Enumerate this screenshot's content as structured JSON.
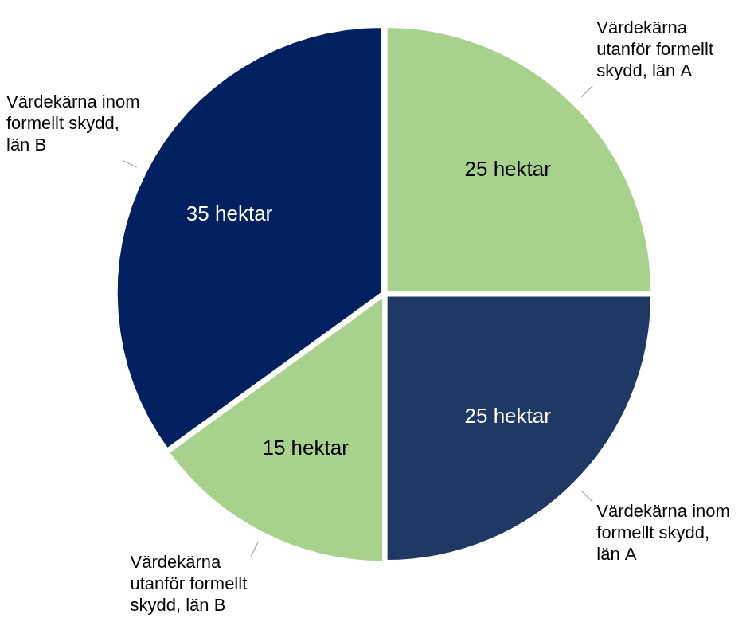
{
  "chart_data": {
    "type": "pie",
    "categories": [
      "Värdekärna utanför formellt skydd, län A",
      "Värdekärna inom formellt skydd, län A",
      "Värdekärna utanför formellt skydd, län B",
      "Värdekärna inom formellt skydd, län B"
    ],
    "values": [
      25,
      25,
      15,
      35
    ],
    "value_labels": [
      "25 hektar",
      "25 hektar",
      "15 hektar",
      "35 hektar"
    ],
    "colors": [
      "#a9d18e",
      "#203864",
      "#a9d18e",
      "#002060"
    ],
    "data_labels": true
  }
}
